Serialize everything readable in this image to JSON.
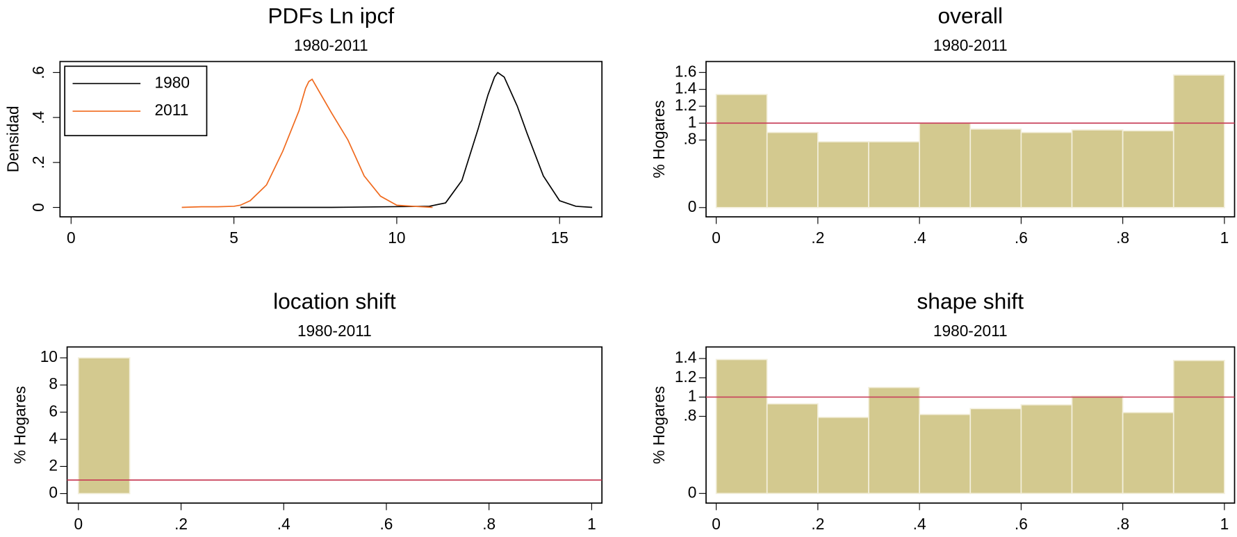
{
  "chart_data": [
    {
      "type": "line",
      "title": "PDFs Ln ipcf",
      "subtitle": "1980-2011",
      "ylabel": "Densidad",
      "xlim": [
        -0.34,
        16.3
      ],
      "xticks": [
        0,
        5,
        10,
        15
      ],
      "ylim": [
        -0.042,
        0.649
      ],
      "yticks": [
        0,
        {
          "value": 0.2,
          "label": ".2"
        },
        {
          "value": 0.4,
          "label": ".4"
        },
        {
          "value": 0.6,
          "label": ".6"
        }
      ],
      "legend": "top-left",
      "series": [
        {
          "name": "1980",
          "color": "#000000",
          "x": [
            5.2,
            8,
            11,
            11.5,
            12,
            12.5,
            12.8,
            13,
            13.1,
            13.3,
            13.7,
            14,
            14.5,
            15,
            15.5,
            16
          ],
          "values": [
            0,
            0,
            0.005,
            0.02,
            0.12,
            0.35,
            0.5,
            0.58,
            0.6,
            0.58,
            0.45,
            0.33,
            0.14,
            0.03,
            0.005,
            0
          ]
        },
        {
          "name": "2011",
          "color": "#f06a1e",
          "x": [
            3.4,
            4,
            4.5,
            5,
            5.2,
            5.5,
            6,
            6.5,
            7,
            7.2,
            7.3,
            7.4,
            7.6,
            8,
            8.5,
            9,
            9.5,
            10,
            10.5,
            11.1
          ],
          "values": [
            0,
            0.003,
            0.003,
            0.005,
            0.01,
            0.03,
            0.1,
            0.25,
            0.43,
            0.53,
            0.56,
            0.57,
            0.52,
            0.42,
            0.3,
            0.14,
            0.05,
            0.01,
            0.005,
            0
          ]
        }
      ]
    },
    {
      "type": "histogram",
      "title": "overall",
      "subtitle": "1980-2011",
      "ylabel": "% Hogares",
      "color": "#d3c98f",
      "refline": 1,
      "refline_color": "#c8405a",
      "bins": [
        0,
        0.1,
        0.2,
        0.3,
        0.4,
        0.5,
        0.6,
        0.7,
        0.8,
        0.9,
        1
      ],
      "values": [
        1.34,
        0.89,
        0.78,
        0.78,
        1.0,
        0.93,
        0.89,
        0.92,
        0.91,
        1.57
      ],
      "xlim": [
        -0.02,
        1.02
      ],
      "xticks": [
        0,
        {
          "value": 0.2,
          "label": ".2"
        },
        {
          "value": 0.4,
          "label": ".4"
        },
        {
          "value": 0.6,
          "label": ".6"
        },
        {
          "value": 0.8,
          "label": ".8"
        },
        1
      ],
      "ylim": [
        -0.11,
        1.73
      ],
      "yticks": [
        0,
        {
          "value": 0.8,
          "label": ".8"
        },
        1,
        {
          "value": 1.2,
          "label": "1.2"
        },
        {
          "value": 1.4,
          "label": "1.4"
        },
        {
          "value": 1.6,
          "label": "1.6"
        }
      ]
    },
    {
      "type": "histogram",
      "title": "location shift",
      "subtitle": "1980-2011",
      "ylabel": "% Hogares",
      "color": "#d3c98f",
      "refline": 1,
      "refline_color": "#c8405a",
      "bins": [
        0,
        0.1,
        0.2,
        0.3,
        0.4,
        0.5,
        0.6,
        0.7,
        0.8,
        0.9,
        1
      ],
      "values": [
        10,
        0,
        0,
        0,
        0,
        0,
        0,
        0,
        0,
        0
      ],
      "xlim": [
        -0.022,
        1.02
      ],
      "xticks": [
        0,
        {
          "value": 0.2,
          "label": ".2"
        },
        {
          "value": 0.4,
          "label": ".4"
        },
        {
          "value": 0.6,
          "label": ".6"
        },
        {
          "value": 0.8,
          "label": ".8"
        },
        1
      ],
      "ylim": [
        -0.7,
        10.8
      ],
      "yticks": [
        0,
        2,
        4,
        6,
        8,
        10
      ]
    },
    {
      "type": "histogram",
      "title": "shape shift",
      "subtitle": "1980-2011",
      "ylabel": "% Hogares",
      "color": "#d3c98f",
      "refline": 1,
      "refline_color": "#c8405a",
      "bins": [
        0,
        0.1,
        0.2,
        0.3,
        0.4,
        0.5,
        0.6,
        0.7,
        0.8,
        0.9,
        1
      ],
      "values": [
        1.39,
        0.93,
        0.79,
        1.1,
        0.82,
        0.88,
        0.92,
        1.01,
        0.84,
        1.38
      ],
      "xlim": [
        -0.02,
        1.02
      ],
      "xticks": [
        0,
        {
          "value": 0.2,
          "label": ".2"
        },
        {
          "value": 0.4,
          "label": ".4"
        },
        {
          "value": 0.6,
          "label": ".6"
        },
        {
          "value": 0.8,
          "label": ".8"
        },
        1
      ],
      "ylim": [
        -0.1,
        1.52
      ],
      "yticks": [
        0,
        {
          "value": 0.8,
          "label": ".8"
        },
        1,
        {
          "value": 1.2,
          "label": "1.2"
        },
        {
          "value": 1.4,
          "label": "1.4"
        }
      ]
    }
  ]
}
